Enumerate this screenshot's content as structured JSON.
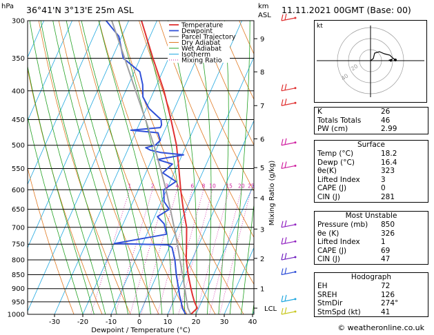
{
  "header": {
    "station": "36°41'N  3°13'E  25m  ASL",
    "datetime": "11.11.2021  00GMT  (Base: 00)"
  },
  "axes": {
    "pressure_unit": "hPa",
    "height_unit_top": "km",
    "height_unit_bottom": "ASL",
    "xlabel": "Dewpoint / Temperature (°C)",
    "mixing_ratio_label": "Mixing Ratio (g/kg)",
    "lcl_label": "LCL"
  },
  "legend": [
    {
      "label": "Temperature",
      "color": "#e03030"
    },
    {
      "label": "Dewpoint",
      "color": "#3050d8"
    },
    {
      "label": "Parcel Trajectory",
      "color": "#a0a0a0"
    },
    {
      "label": "Dry Adiabat",
      "color": "#e07820"
    },
    {
      "label": "Wet Adiabat",
      "color": "#20a020"
    },
    {
      "label": "Isotherm",
      "color": "#20a8e0"
    },
    {
      "label": "Mixing Ratio",
      "color": "#d020a0"
    }
  ],
  "chart_data": {
    "type": "line",
    "pressure_levels": [
      300,
      350,
      400,
      450,
      500,
      550,
      600,
      650,
      700,
      750,
      800,
      850,
      900,
      950,
      1000
    ],
    "pressure_tick_labels": [
      "300",
      "350",
      "400",
      "450",
      "500",
      "550",
      "600",
      "650",
      "700",
      "750",
      "800",
      "850",
      "900",
      "950",
      "1000"
    ],
    "temperature_ticks": [
      -30,
      -20,
      -10,
      0,
      10,
      20,
      30,
      40
    ],
    "temperature_tick_labels": [
      "-30",
      "-20",
      "-10",
      "0",
      "10",
      "20",
      "30",
      "40"
    ],
    "height_km_ticks": [
      {
        "label": "9",
        "p": 323
      },
      {
        "label": "8",
        "p": 370
      },
      {
        "label": "7",
        "p": 425
      },
      {
        "label": "6",
        "p": 487
      },
      {
        "label": "5",
        "p": 548
      },
      {
        "label": "4",
        "p": 620
      },
      {
        "label": "3",
        "p": 705
      },
      {
        "label": "2",
        "p": 795
      },
      {
        "label": "1",
        "p": 900
      }
    ],
    "lcl_pressure": 975,
    "mixing_ratio_labels": [
      "1",
      "2",
      "3",
      "4",
      "6",
      "8",
      "10",
      "15",
      "20",
      "25"
    ],
    "mixing_ratio_values": [
      1,
      2,
      3,
      4,
      6,
      8,
      10,
      15,
      20,
      25
    ],
    "xlim": [
      -40,
      40
    ],
    "plim": [
      300,
      1000
    ],
    "series": [
      {
        "name": "Temperature",
        "color": "#e03030",
        "p": [
          1000,
          975,
          950,
          925,
          900,
          850,
          800,
          750,
          700,
          650,
          600,
          550,
          500,
          450,
          400,
          350,
          300
        ],
        "t": [
          18.2,
          19.5,
          17.5,
          15.8,
          14.2,
          11.0,
          8.0,
          5.6,
          3.0,
          -1.0,
          -5.0,
          -9.0,
          -13.5,
          -19.5,
          -26.5,
          -35.5,
          -45.5
        ]
      },
      {
        "name": "Dewpoint",
        "color": "#3050d8",
        "p": [
          1000,
          975,
          950,
          925,
          900,
          850,
          800,
          760,
          752,
          748,
          720,
          690,
          670,
          650,
          630,
          600,
          580,
          560,
          540,
          530,
          520,
          515,
          510,
          505,
          500,
          490,
          475,
          470,
          465,
          460,
          450,
          430,
          410,
          390,
          370,
          350,
          320,
          300
        ],
        "t": [
          16.4,
          14.2,
          12.8,
          11.2,
          9.8,
          6.8,
          4.0,
          1.0,
          -1.0,
          -20.0,
          -3.0,
          -5.5,
          -9.0,
          -6.0,
          -9.0,
          -11.0,
          -8.0,
          -14.0,
          -12.0,
          -18.0,
          -9.5,
          -18.0,
          -22.0,
          -24.0,
          -21.0,
          -20.0,
          -22.0,
          -32.0,
          -22.0,
          -22.0,
          -23.0,
          -29.0,
          -33.0,
          -35.0,
          -38.0,
          -46.0,
          -51.0,
          -58.0
        ]
      },
      {
        "name": "Parcel Trajectory",
        "color": "#a0a0a0",
        "p": [
          1000,
          975,
          950,
          900,
          850,
          800,
          750,
          700,
          650,
          600,
          550,
          500,
          450,
          400,
          350,
          300
        ],
        "t": [
          18.2,
          16.2,
          14.8,
          12.0,
          9.0,
          5.8,
          2.4,
          -1.4,
          -5.6,
          -10.2,
          -15.5,
          -21.5,
          -28.5,
          -36.5,
          -45.5,
          -56.0
        ]
      }
    ]
  },
  "indices": {
    "k_label": "K",
    "k": "26",
    "tt_label": "Totals Totals",
    "tt": "46",
    "pw_label": "PW (cm)",
    "pw": "2.99"
  },
  "surface": {
    "title": "Surface",
    "rows": [
      {
        "label": "Temp (°C)",
        "value": "18.2"
      },
      {
        "label": "Dewp (°C)",
        "value": "16.4"
      },
      {
        "label": "θe(K)",
        "value": "323"
      },
      {
        "label": "Lifted Index",
        "value": "3"
      },
      {
        "label": "CAPE (J)",
        "value": "0"
      },
      {
        "label": "CIN (J)",
        "value": "281"
      }
    ]
  },
  "most_unstable": {
    "title": "Most Unstable",
    "rows": [
      {
        "label": "Pressure (mb)",
        "value": "850"
      },
      {
        "label": "θe (K)",
        "value": "326"
      },
      {
        "label": "Lifted Index",
        "value": "1"
      },
      {
        "label": "CAPE (J)",
        "value": "69"
      },
      {
        "label": "CIN (J)",
        "value": "47"
      }
    ]
  },
  "hodograph": {
    "title": "Hodograph",
    "box_label": "kt",
    "ring_labels": [
      "20",
      "40"
    ],
    "rows": [
      {
        "label": "EH",
        "value": "72"
      },
      {
        "label": "SREH",
        "value": "126"
      },
      {
        "label": "StmDir",
        "value": "274°"
      },
      {
        "label": "StmSpd (kt)",
        "value": "41"
      }
    ]
  },
  "footer": "© weatheronline.co.uk"
}
